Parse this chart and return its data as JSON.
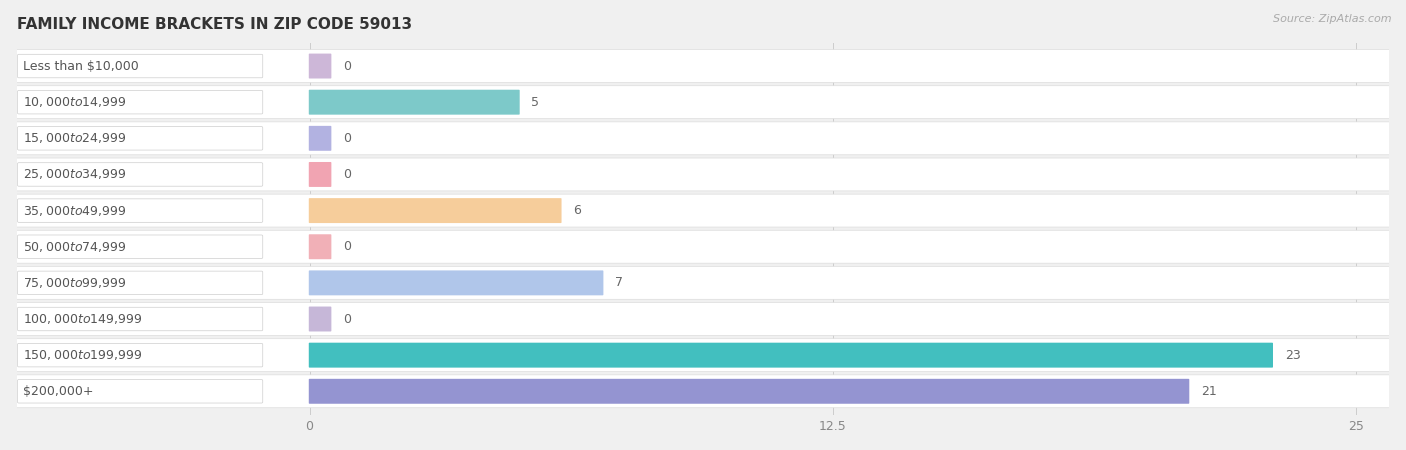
{
  "title": "FAMILY INCOME BRACKETS IN ZIP CODE 59013",
  "source": "Source: ZipAtlas.com",
  "categories": [
    "Less than $10,000",
    "$10,000 to $14,999",
    "$15,000 to $24,999",
    "$25,000 to $34,999",
    "$35,000 to $49,999",
    "$50,000 to $74,999",
    "$75,000 to $99,999",
    "$100,000 to $149,999",
    "$150,000 to $199,999",
    "$200,000+"
  ],
  "values": [
    0,
    5,
    0,
    0,
    6,
    0,
    7,
    0,
    23,
    21
  ],
  "bar_colors": [
    "#c8afd4",
    "#6fc4c4",
    "#aааadd",
    "#f09aaa",
    "#f5c890",
    "#f0a8b0",
    "#a8c0e8",
    "#c0afd4",
    "#2db8b8",
    "#8888cc"
  ],
  "xlim": [
    0,
    25
  ],
  "xticks": [
    0,
    12.5,
    25
  ],
  "bg_color": "#f0f0f0",
  "row_bg_color": "#ffffff",
  "title_fontsize": 11,
  "label_fontsize": 9,
  "value_fontsize": 9,
  "bar_height": 0.65
}
